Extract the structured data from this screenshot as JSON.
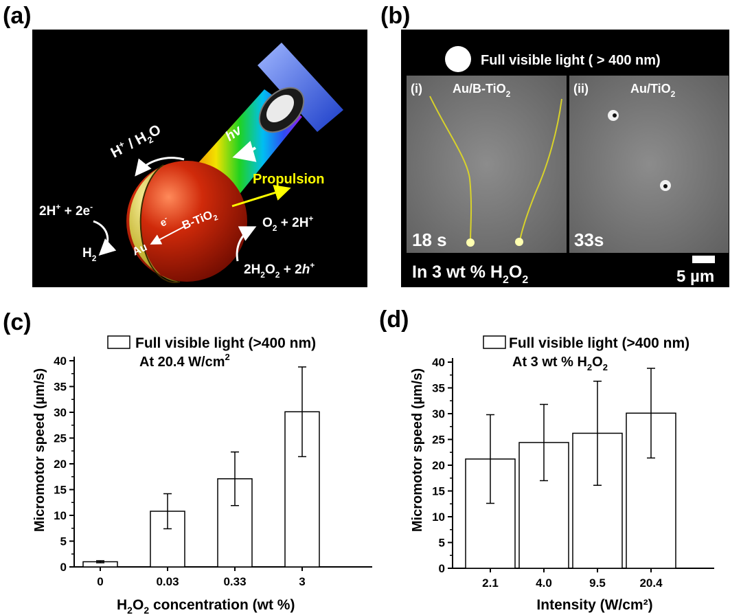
{
  "panels": {
    "a": {
      "label": "(a)",
      "hv": "hv",
      "h_water_1": "H",
      "h_water_2": "+",
      "h_water_3": " / H",
      "h_water_4": "2",
      "h_water_5": "O",
      "propulsion": "Propulsion",
      "left_eq_1": "2H",
      "left_eq_2": "+",
      "left_eq_3": " + 2e",
      "left_eq_4": "-",
      "h2_1": "H",
      "h2_2": "2",
      "electron_1": "e",
      "electron_2": "-",
      "au": "Au",
      "btio2_1": "B-TiO",
      "btio2_2": "2",
      "o2_1": "O",
      "o2_2": "2",
      "o2_3": " + 2H",
      "o2_4": "+",
      "h2o2_1": "2H",
      "h2o2_2": "2",
      "h2o2_3": "O",
      "h2o2_4": "2",
      "h2o2_5": " + 2",
      "h2o2_6": "h",
      "h2o2_7": "+"
    },
    "b": {
      "label": "(b)",
      "light": "Full visible light ( > 400 nm)",
      "i_label": "(i)",
      "i_sample_1": "Au/B-TiO",
      "i_sample_2": "2",
      "ii_label": "(ii)",
      "ii_sample_1": "Au/TiO",
      "ii_sample_2": "2",
      "time_i": "18 s",
      "time_ii": "33s",
      "medium_1": "In 3 wt % H",
      "medium_2": "2",
      "medium_3": "O",
      "medium_4": "2",
      "scale": "5 µm"
    },
    "c": {
      "label": "(c)",
      "legend": "Full visible light (>400 nm)",
      "legend2_1": "At 20.4 W/cm",
      "legend2_2": "2"
    },
    "d": {
      "label": "(d)",
      "legend": "Full visible light (>400 nm)",
      "legend2_1": "At 3 wt % H",
      "legend2_2": "2",
      "legend2_3": "O",
      "legend2_4": "2"
    }
  },
  "chart_data": [
    {
      "type": "bar",
      "panel": "c",
      "categories": [
        "0",
        "0.03",
        "0.33",
        "3"
      ],
      "series": [
        {
          "name": "Full visible light (>400 nm)",
          "values": [
            1.0,
            10.8,
            17.1,
            30.1
          ],
          "errors": [
            0.2,
            3.4,
            5.2,
            8.7
          ]
        }
      ],
      "xlabel": "H2O2 concentration (wt %)",
      "ylabel": "Micromotor speed (µm/s)",
      "ylim": [
        0,
        40
      ],
      "yticks": [
        "0",
        "5",
        "10",
        "15",
        "20",
        "25",
        "30",
        "35",
        "40"
      ]
    },
    {
      "type": "bar",
      "panel": "d",
      "categories": [
        "2.1",
        "4.0",
        "9.5",
        "20.4"
      ],
      "series": [
        {
          "name": "Full visible light (>400 nm)",
          "values": [
            21.2,
            24.4,
            26.2,
            30.1
          ],
          "errors": [
            8.6,
            7.4,
            10.1,
            8.7
          ]
        }
      ],
      "xlabel": "Intensity (W/cm²)",
      "ylabel": "Micromotor speed (µm/s)",
      "ylim": [
        0,
        40
      ],
      "yticks": [
        "0",
        "5",
        "10",
        "15",
        "20",
        "25",
        "30",
        "35",
        "40"
      ]
    }
  ]
}
